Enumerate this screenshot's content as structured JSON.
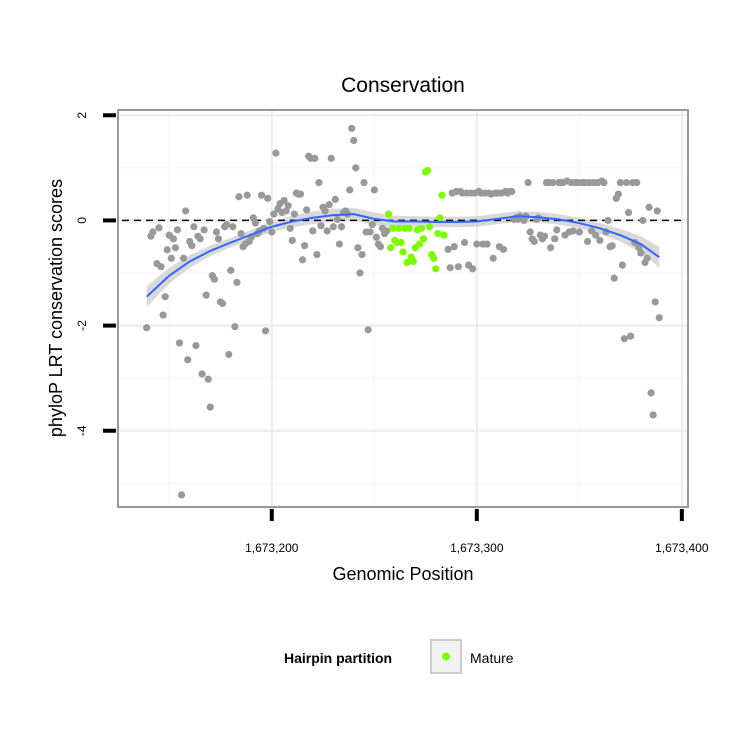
{
  "chart_data": {
    "type": "scatter",
    "title": "Conservation",
    "xlabel": "Genomic Position",
    "ylabel": "phyloP LRT conservation scores",
    "xlim": [
      1673125,
      1673403
    ],
    "ylim": [
      -5.45,
      2.1
    ],
    "x_ticks": [
      1673200,
      1673300,
      1673400
    ],
    "x_tick_labels": [
      "1,673,200",
      "1,673,300",
      "1,673,400"
    ],
    "y_ticks": [
      2,
      0,
      -2,
      -4
    ],
    "y_tick_labels": [
      "2",
      "0",
      "-2",
      "-4"
    ],
    "hline": 0,
    "grid": true,
    "legend": {
      "title": "Hairpin partition",
      "placement": "bottom",
      "entries": [
        {
          "label": "Mature",
          "color": "#7cfc00"
        }
      ]
    },
    "colors": {
      "other_points": "#999999",
      "mature_points": "#7cfc00",
      "smooth_line": "#3366ff",
      "smooth_band": "#cccccc",
      "hline": "#000000"
    },
    "series": [
      {
        "name": "",
        "color": "#999999",
        "points": [
          [
            1673139,
            -2.04
          ],
          [
            1673141,
            -0.3
          ],
          [
            1673142,
            -0.22
          ],
          [
            1673144,
            -0.82
          ],
          [
            1673145,
            -0.14
          ],
          [
            1673146,
            -0.88
          ],
          [
            1673147,
            -1.8
          ],
          [
            1673148,
            -1.45
          ],
          [
            1673149,
            -0.56
          ],
          [
            1673150,
            -0.28
          ],
          [
            1673151,
            -0.72
          ],
          [
            1673152,
            -0.35
          ],
          [
            1673153,
            -0.52
          ],
          [
            1673154,
            -0.18
          ],
          [
            1673155,
            -2.33
          ],
          [
            1673156,
            -5.22
          ],
          [
            1673157,
            -0.72
          ],
          [
            1673158,
            0.18
          ],
          [
            1673159,
            -2.65
          ],
          [
            1673160,
            -0.4
          ],
          [
            1673161,
            -0.48
          ],
          [
            1673162,
            -0.12
          ],
          [
            1673163,
            -2.38
          ],
          [
            1673164,
            -0.3
          ],
          [
            1673165,
            -0.35
          ],
          [
            1673166,
            -2.92
          ],
          [
            1673167,
            -0.18
          ],
          [
            1673168,
            -1.42
          ],
          [
            1673169,
            -3.02
          ],
          [
            1673170,
            -3.55
          ],
          [
            1673171,
            -1.05
          ],
          [
            1673172,
            -1.12
          ],
          [
            1673173,
            -0.22
          ],
          [
            1673174,
            -0.35
          ],
          [
            1673175,
            -1.55
          ],
          [
            1673176,
            -1.58
          ],
          [
            1673177,
            -0.12
          ],
          [
            1673178,
            -0.08
          ],
          [
            1673179,
            -2.55
          ],
          [
            1673180,
            -0.95
          ],
          [
            1673181,
            -0.12
          ],
          [
            1673182,
            -2.02
          ],
          [
            1673183,
            -1.18
          ],
          [
            1673184,
            0.45
          ],
          [
            1673185,
            -0.25
          ],
          [
            1673186,
            -0.5
          ],
          [
            1673187,
            -0.45
          ],
          [
            1673188,
            0.48
          ],
          [
            1673189,
            -0.4
          ],
          [
            1673190,
            -0.32
          ],
          [
            1673191,
            0.05
          ],
          [
            1673192,
            -0.05
          ],
          [
            1673193,
            -0.25
          ],
          [
            1673194,
            -0.2
          ],
          [
            1673195,
            0.48
          ],
          [
            1673196,
            -0.15
          ],
          [
            1673197,
            -2.1
          ],
          [
            1673198,
            0.42
          ],
          [
            1673199,
            -0.02
          ],
          [
            1673200,
            -0.22
          ],
          [
            1673201,
            0.12
          ],
          [
            1673202,
            1.28
          ],
          [
            1673203,
            0.22
          ],
          [
            1673204,
            0.32
          ],
          [
            1673205,
            0.15
          ],
          [
            1673206,
            0.38
          ],
          [
            1673207,
            0.18
          ],
          [
            1673208,
            0.28
          ],
          [
            1673209,
            -0.15
          ],
          [
            1673210,
            -0.38
          ],
          [
            1673211,
            0.12
          ],
          [
            1673212,
            0.52
          ],
          [
            1673213,
            0.5
          ],
          [
            1673214,
            0.5
          ],
          [
            1673215,
            -0.75
          ],
          [
            1673216,
            -0.48
          ],
          [
            1673217,
            0.2
          ],
          [
            1673218,
            1.22
          ],
          [
            1673219,
            1.18
          ],
          [
            1673220,
            -0.2
          ],
          [
            1673221,
            1.18
          ],
          [
            1673222,
            -0.65
          ],
          [
            1673223,
            0.72
          ],
          [
            1673224,
            -0.1
          ],
          [
            1673225,
            0.25
          ],
          [
            1673226,
            0.18
          ],
          [
            1673227,
            -0.2
          ],
          [
            1673228,
            0.3
          ],
          [
            1673229,
            1.18
          ],
          [
            1673230,
            -0.12
          ],
          [
            1673231,
            0.4
          ],
          [
            1673232,
            0.02
          ],
          [
            1673233,
            -0.45
          ],
          [
            1673234,
            -0.12
          ],
          [
            1673235,
            0.15
          ],
          [
            1673236,
            0.18
          ],
          [
            1673237,
            0.12
          ],
          [
            1673238,
            0.58
          ],
          [
            1673239,
            1.75
          ],
          [
            1673240,
            1.52
          ],
          [
            1673241,
            1.0
          ],
          [
            1673242,
            -0.52
          ],
          [
            1673243,
            -1.0
          ],
          [
            1673244,
            -0.65
          ],
          [
            1673245,
            0.72
          ],
          [
            1673246,
            -0.22
          ],
          [
            1673247,
            -2.08
          ],
          [
            1673248,
            -0.22
          ],
          [
            1673249,
            -0.08
          ],
          [
            1673250,
            0.58
          ],
          [
            1673251,
            -0.32
          ],
          [
            1673252,
            -0.45
          ],
          [
            1673253,
            -0.5
          ],
          [
            1673254,
            -0.15
          ],
          [
            1673255,
            -0.25
          ],
          [
            1673256,
            -0.2
          ],
          [
            1673286,
            -0.55
          ],
          [
            1673287,
            -0.9
          ],
          [
            1673288,
            0.52
          ],
          [
            1673289,
            -0.5
          ],
          [
            1673290,
            0.55
          ],
          [
            1673291,
            -0.88
          ],
          [
            1673292,
            0.55
          ],
          [
            1673293,
            0.52
          ],
          [
            1673294,
            -0.42
          ],
          [
            1673295,
            0.52
          ],
          [
            1673296,
            -0.85
          ],
          [
            1673297,
            0.52
          ],
          [
            1673298,
            -0.92
          ],
          [
            1673299,
            0.52
          ],
          [
            1673300,
            -0.45
          ],
          [
            1673301,
            0.55
          ],
          [
            1673302,
            0.52
          ],
          [
            1673303,
            -0.45
          ],
          [
            1673304,
            0.52
          ],
          [
            1673305,
            -0.45
          ],
          [
            1673306,
            0.52
          ],
          [
            1673307,
            0.5
          ],
          [
            1673308,
            -0.72
          ],
          [
            1673309,
            0.52
          ],
          [
            1673310,
            0.52
          ],
          [
            1673311,
            -0.5
          ],
          [
            1673312,
            0.52
          ],
          [
            1673313,
            -0.55
          ],
          [
            1673314,
            0.55
          ],
          [
            1673315,
            0.52
          ],
          [
            1673316,
            0.55
          ],
          [
            1673317,
            0.55
          ],
          [
            1673318,
            0.02
          ],
          [
            1673319,
            0.05
          ],
          [
            1673320,
            0.02
          ],
          [
            1673321,
            0.08
          ],
          [
            1673322,
            0.05
          ],
          [
            1673323,
            0.0
          ],
          [
            1673324,
            0.08
          ],
          [
            1673325,
            0.72
          ],
          [
            1673326,
            -0.22
          ],
          [
            1673327,
            -0.35
          ],
          [
            1673328,
            -0.4
          ],
          [
            1673329,
            0.02
          ],
          [
            1673330,
            0.05
          ],
          [
            1673331,
            -0.28
          ],
          [
            1673332,
            -0.35
          ],
          [
            1673333,
            -0.3
          ],
          [
            1673334,
            0.72
          ],
          [
            1673335,
            0.72
          ],
          [
            1673336,
            -0.52
          ],
          [
            1673337,
            0.72
          ],
          [
            1673338,
            -0.35
          ],
          [
            1673339,
            -0.18
          ],
          [
            1673340,
            0.72
          ],
          [
            1673341,
            0.72
          ],
          [
            1673342,
            0.72
          ],
          [
            1673343,
            -0.28
          ],
          [
            1673344,
            0.75
          ],
          [
            1673345,
            -0.22
          ],
          [
            1673346,
            0.72
          ],
          [
            1673347,
            -0.2
          ],
          [
            1673348,
            0.72
          ],
          [
            1673349,
            0.72
          ],
          [
            1673350,
            -0.22
          ],
          [
            1673351,
            0.72
          ],
          [
            1673352,
            0.72
          ],
          [
            1673353,
            0.72
          ],
          [
            1673354,
            -0.4
          ],
          [
            1673355,
            0.72
          ],
          [
            1673356,
            -0.2
          ],
          [
            1673357,
            0.72
          ],
          [
            1673358,
            -0.28
          ],
          [
            1673359,
            0.72
          ],
          [
            1673360,
            -0.38
          ],
          [
            1673361,
            0.75
          ],
          [
            1673362,
            0.72
          ],
          [
            1673363,
            -0.22
          ],
          [
            1673364,
            0.0
          ],
          [
            1673365,
            -0.5
          ],
          [
            1673366,
            -0.48
          ],
          [
            1673367,
            -1.1
          ],
          [
            1673368,
            0.42
          ],
          [
            1673369,
            0.5
          ],
          [
            1673370,
            0.72
          ],
          [
            1673371,
            -0.85
          ],
          [
            1673372,
            -2.25
          ],
          [
            1673373,
            0.72
          ],
          [
            1673374,
            0.15
          ],
          [
            1673375,
            -2.2
          ],
          [
            1673376,
            0.72
          ],
          [
            1673377,
            -0.42
          ],
          [
            1673378,
            0.72
          ],
          [
            1673379,
            -0.52
          ],
          [
            1673380,
            -0.62
          ],
          [
            1673381,
            0.0
          ],
          [
            1673382,
            -0.8
          ],
          [
            1673383,
            -0.72
          ],
          [
            1673384,
            0.25
          ],
          [
            1673385,
            -3.28
          ],
          [
            1673386,
            -3.7
          ],
          [
            1673387,
            -1.55
          ],
          [
            1673388,
            0.18
          ],
          [
            1673389,
            -1.85
          ]
        ]
      },
      {
        "name": "Mature",
        "color": "#7cfc00",
        "points": [
          [
            1673257,
            0.12
          ],
          [
            1673258,
            -0.52
          ],
          [
            1673259,
            -0.15
          ],
          [
            1673260,
            -0.38
          ],
          [
            1673261,
            -0.42
          ],
          [
            1673262,
            -0.15
          ],
          [
            1673263,
            -0.42
          ],
          [
            1673264,
            -0.6
          ],
          [
            1673265,
            -0.15
          ],
          [
            1673266,
            -0.8
          ],
          [
            1673267,
            -0.15
          ],
          [
            1673268,
            -0.7
          ],
          [
            1673269,
            -0.78
          ],
          [
            1673270,
            -0.52
          ],
          [
            1673271,
            -0.18
          ],
          [
            1673272,
            -0.45
          ],
          [
            1673273,
            -0.15
          ],
          [
            1673274,
            -0.35
          ],
          [
            1673275,
            0.92
          ],
          [
            1673276,
            0.95
          ],
          [
            1673277,
            -0.12
          ],
          [
            1673278,
            -0.65
          ],
          [
            1673279,
            -0.72
          ],
          [
            1673280,
            -0.92
          ],
          [
            1673281,
            -0.25
          ],
          [
            1673282,
            0.05
          ],
          [
            1673283,
            0.48
          ],
          [
            1673284,
            -0.28
          ]
        ]
      }
    ],
    "smooth": {
      "x": [
        1673139,
        1673150,
        1673160,
        1673170,
        1673180,
        1673190,
        1673200,
        1673210,
        1673220,
        1673230,
        1673240,
        1673250,
        1673260,
        1673270,
        1673280,
        1673290,
        1673300,
        1673310,
        1673320,
        1673330,
        1673340,
        1673350,
        1673360,
        1673370,
        1673380,
        1673389
      ],
      "y": [
        -1.45,
        -1.05,
        -0.78,
        -0.58,
        -0.42,
        -0.27,
        -0.12,
        -0.02,
        0.05,
        0.1,
        0.12,
        0.03,
        -0.02,
        -0.02,
        -0.03,
        -0.03,
        -0.02,
        0.03,
        0.08,
        0.06,
        0.02,
        -0.05,
        -0.15,
        -0.28,
        -0.45,
        -0.7
      ],
      "se": [
        0.2,
        0.15,
        0.12,
        0.1,
        0.09,
        0.09,
        0.1,
        0.11,
        0.12,
        0.12,
        0.12,
        0.12,
        0.11,
        0.1,
        0.1,
        0.1,
        0.1,
        0.1,
        0.1,
        0.1,
        0.1,
        0.1,
        0.1,
        0.12,
        0.15,
        0.2
      ]
    }
  }
}
